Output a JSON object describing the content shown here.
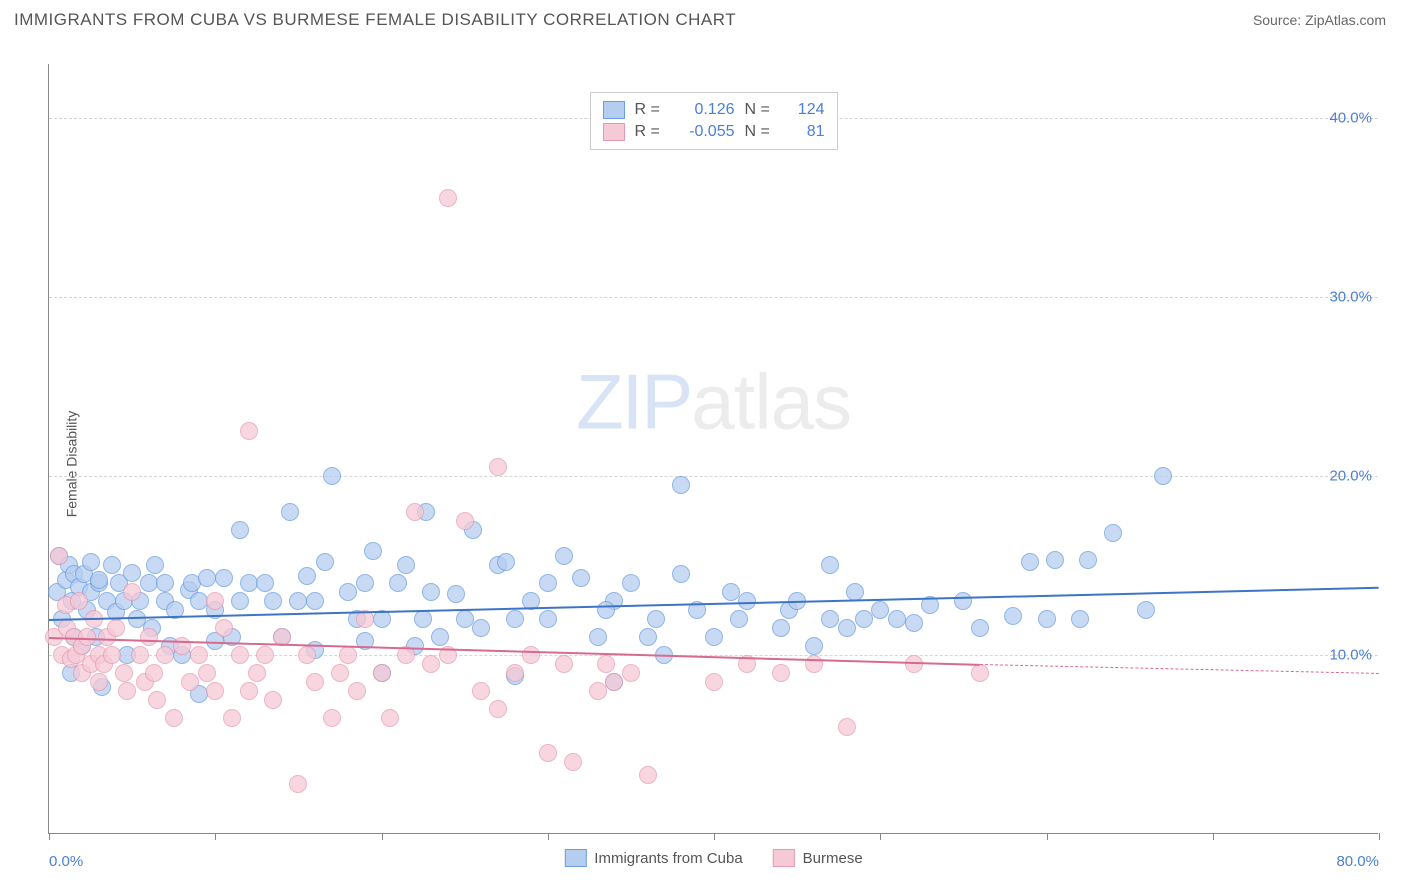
{
  "title": "IMMIGRANTS FROM CUBA VS BURMESE FEMALE DISABILITY CORRELATION CHART",
  "source": "Source: ZipAtlas.com",
  "ylabel": "Female Disability",
  "watermark": {
    "left": "ZIP",
    "right": "atlas"
  },
  "chart": {
    "type": "scatter",
    "xlim": [
      0,
      80
    ],
    "ylim": [
      0,
      43
    ],
    "xticks": [
      0,
      10,
      20,
      30,
      40,
      50,
      60,
      70,
      80
    ],
    "xtick_labels_shown": {
      "0": "0.0%",
      "80": "80.0%"
    },
    "yticks": [
      10,
      20,
      30,
      40
    ],
    "ytick_labels": [
      "10.0%",
      "20.0%",
      "30.0%",
      "40.0%"
    ],
    "background_color": "#ffffff",
    "grid_color": "#d6d6d6",
    "label_color": "#4a7fd6",
    "marker_radius": 9,
    "marker_stroke_width": 1.5,
    "marker_fill_opacity": 0.35
  },
  "series": [
    {
      "name": "Immigrants from Cuba",
      "color_stroke": "#6b9ee0",
      "color_fill": "#b5cdef",
      "R": "0.126",
      "N": "124",
      "trend": {
        "x1": 0,
        "y1": 12.0,
        "x2": 80,
        "y2": 13.8,
        "color": "#3d74c6",
        "width": 2,
        "dash_after_x": 80
      },
      "points": [
        [
          0.5,
          13.5
        ],
        [
          0.6,
          15.5
        ],
        [
          0.8,
          12.0
        ],
        [
          1.0,
          14.2
        ],
        [
          1.2,
          15.0
        ],
        [
          1.3,
          9.0
        ],
        [
          1.4,
          13.0
        ],
        [
          1.5,
          11.0
        ],
        [
          1.5,
          14.5
        ],
        [
          1.8,
          13.8
        ],
        [
          2.0,
          10.5
        ],
        [
          2.1,
          14.5
        ],
        [
          2.3,
          12.5
        ],
        [
          2.5,
          13.5
        ],
        [
          2.5,
          15.2
        ],
        [
          2.8,
          11.0
        ],
        [
          3.0,
          14.0
        ],
        [
          3.0,
          14.2
        ],
        [
          3.2,
          8.2
        ],
        [
          3.5,
          13.0
        ],
        [
          3.8,
          15.0
        ],
        [
          4.0,
          12.4
        ],
        [
          4.2,
          14.0
        ],
        [
          4.5,
          13.0
        ],
        [
          4.7,
          10.0
        ],
        [
          5.0,
          14.6
        ],
        [
          5.3,
          12.0
        ],
        [
          5.5,
          13.0
        ],
        [
          6.0,
          14.0
        ],
        [
          6.2,
          11.5
        ],
        [
          6.4,
          15.0
        ],
        [
          7.0,
          14.0
        ],
        [
          7.0,
          13.0
        ],
        [
          7.3,
          10.5
        ],
        [
          7.6,
          12.5
        ],
        [
          8.0,
          10.0
        ],
        [
          8.4,
          13.6
        ],
        [
          8.6,
          14.0
        ],
        [
          9.0,
          7.8
        ],
        [
          9.0,
          13.0
        ],
        [
          9.5,
          14.3
        ],
        [
          10.0,
          10.8
        ],
        [
          10.0,
          12.5
        ],
        [
          10.5,
          14.3
        ],
        [
          11.0,
          11.0
        ],
        [
          11.5,
          17.0
        ],
        [
          11.5,
          13.0
        ],
        [
          12.0,
          14.0
        ],
        [
          13.0,
          14.0
        ],
        [
          13.5,
          13.0
        ],
        [
          14.0,
          11.0
        ],
        [
          14.5,
          18.0
        ],
        [
          15.0,
          13.0
        ],
        [
          15.5,
          14.4
        ],
        [
          16.0,
          10.3
        ],
        [
          16.0,
          13.0
        ],
        [
          16.6,
          15.2
        ],
        [
          17.0,
          20.0
        ],
        [
          18.0,
          13.5
        ],
        [
          18.5,
          12.0
        ],
        [
          19.0,
          14.0
        ],
        [
          19.0,
          10.8
        ],
        [
          19.5,
          15.8
        ],
        [
          20.0,
          12.0
        ],
        [
          20.0,
          9.0
        ],
        [
          21.0,
          14.0
        ],
        [
          21.5,
          15.0
        ],
        [
          22.0,
          10.5
        ],
        [
          22.5,
          12.0
        ],
        [
          22.7,
          18.0
        ],
        [
          23.0,
          13.5
        ],
        [
          23.5,
          11.0
        ],
        [
          24.5,
          13.4
        ],
        [
          25.0,
          12.0
        ],
        [
          25.5,
          17.0
        ],
        [
          26.0,
          11.5
        ],
        [
          27.0,
          15.0
        ],
        [
          27.5,
          15.2
        ],
        [
          28.0,
          12.0
        ],
        [
          28.0,
          8.8
        ],
        [
          29.0,
          13.0
        ],
        [
          30.0,
          12.0
        ],
        [
          30.0,
          14.0
        ],
        [
          31.0,
          15.5
        ],
        [
          32.0,
          14.3
        ],
        [
          33.0,
          11.0
        ],
        [
          34.0,
          13.0
        ],
        [
          34.0,
          8.5
        ],
        [
          35.0,
          14.0
        ],
        [
          36.0,
          11.0
        ],
        [
          36.5,
          12.0
        ],
        [
          37.0,
          10.0
        ],
        [
          38.0,
          14.5
        ],
        [
          38.0,
          19.5
        ],
        [
          39.0,
          12.5
        ],
        [
          40.0,
          11.0
        ],
        [
          41.0,
          13.5
        ],
        [
          41.5,
          12.0
        ],
        [
          42.0,
          13.0
        ],
        [
          44.0,
          11.5
        ],
        [
          44.5,
          12.5
        ],
        [
          45.0,
          13.0
        ],
        [
          46.0,
          10.5
        ],
        [
          47.0,
          12.0
        ],
        [
          48.0,
          11.5
        ],
        [
          49.0,
          12.0
        ],
        [
          50.0,
          12.5
        ],
        [
          52.0,
          11.8
        ],
        [
          53.0,
          12.8
        ],
        [
          55.0,
          13.0
        ],
        [
          56.0,
          11.5
        ],
        [
          58.0,
          12.2
        ],
        [
          59.0,
          15.2
        ],
        [
          60.0,
          12.0
        ],
        [
          60.5,
          15.3
        ],
        [
          62.0,
          12.0
        ],
        [
          62.5,
          15.3
        ],
        [
          64.0,
          16.8
        ],
        [
          66.0,
          12.5
        ],
        [
          67.0,
          20.0
        ],
        [
          47.0,
          15.0
        ],
        [
          48.5,
          13.5
        ],
        [
          51.0,
          12.0
        ],
        [
          33.5,
          12.5
        ]
      ]
    },
    {
      "name": "Burmese",
      "color_stroke": "#e79bb2",
      "color_fill": "#f6c9d6",
      "R": "-0.055",
      "N": "81",
      "trend": {
        "x1": 0,
        "y1": 11.0,
        "x2": 56,
        "y2": 9.5,
        "color": "#d86a90",
        "width": 2,
        "dash_after_x": 56,
        "dash_to_x": 80,
        "dash_to_y": 9.0
      },
      "points": [
        [
          0.3,
          11.0
        ],
        [
          0.6,
          15.5
        ],
        [
          0.8,
          10.0
        ],
        [
          1.0,
          12.8
        ],
        [
          1.1,
          11.5
        ],
        [
          1.3,
          9.8
        ],
        [
          1.5,
          11.0
        ],
        [
          1.6,
          10.0
        ],
        [
          1.8,
          13.0
        ],
        [
          2.0,
          10.5
        ],
        [
          2.0,
          9.0
        ],
        [
          2.3,
          11.0
        ],
        [
          2.5,
          9.5
        ],
        [
          2.7,
          12.0
        ],
        [
          3.0,
          10.0
        ],
        [
          3.0,
          8.5
        ],
        [
          3.3,
          9.5
        ],
        [
          3.5,
          11.0
        ],
        [
          3.8,
          10.0
        ],
        [
          4.0,
          11.5
        ],
        [
          4.5,
          9.0
        ],
        [
          4.7,
          8.0
        ],
        [
          5.0,
          13.5
        ],
        [
          5.5,
          10.0
        ],
        [
          5.8,
          8.5
        ],
        [
          6.0,
          11.0
        ],
        [
          6.3,
          9.0
        ],
        [
          6.5,
          7.5
        ],
        [
          7.0,
          10.0
        ],
        [
          7.5,
          6.5
        ],
        [
          8.0,
          10.5
        ],
        [
          8.5,
          8.5
        ],
        [
          9.0,
          10.0
        ],
        [
          9.5,
          9.0
        ],
        [
          10.0,
          13.0
        ],
        [
          10.0,
          8.0
        ],
        [
          10.5,
          11.5
        ],
        [
          11.0,
          6.5
        ],
        [
          11.5,
          10.0
        ],
        [
          12.0,
          8.0
        ],
        [
          12.0,
          22.5
        ],
        [
          12.5,
          9.0
        ],
        [
          13.0,
          10.0
        ],
        [
          13.5,
          7.5
        ],
        [
          14.0,
          11.0
        ],
        [
          15.0,
          2.8
        ],
        [
          15.5,
          10.0
        ],
        [
          16.0,
          8.5
        ],
        [
          17.0,
          6.5
        ],
        [
          17.5,
          9.0
        ],
        [
          18.0,
          10.0
        ],
        [
          18.5,
          8.0
        ],
        [
          19.0,
          12.0
        ],
        [
          20.0,
          9.0
        ],
        [
          20.5,
          6.5
        ],
        [
          21.5,
          10.0
        ],
        [
          22.0,
          18.0
        ],
        [
          23.0,
          9.5
        ],
        [
          24.0,
          10.0
        ],
        [
          24.0,
          35.5
        ],
        [
          25.0,
          17.5
        ],
        [
          26.0,
          8.0
        ],
        [
          27.0,
          7.0
        ],
        [
          27.0,
          20.5
        ],
        [
          28.0,
          9.0
        ],
        [
          29.0,
          10.0
        ],
        [
          30.0,
          4.5
        ],
        [
          31.0,
          9.5
        ],
        [
          31.5,
          4.0
        ],
        [
          33.0,
          8.0
        ],
        [
          34.0,
          8.5
        ],
        [
          35.0,
          9.0
        ],
        [
          36.0,
          3.3
        ],
        [
          40.0,
          8.5
        ],
        [
          42.0,
          9.5
        ],
        [
          44.0,
          9.0
        ],
        [
          46.0,
          9.5
        ],
        [
          48.0,
          6.0
        ],
        [
          52.0,
          9.5
        ],
        [
          56.0,
          9.0
        ],
        [
          33.5,
          9.5
        ]
      ]
    }
  ],
  "legend_stats_labels": {
    "R": "R =",
    "N": "N ="
  },
  "bottom_legend": [
    {
      "label": "Immigrants from Cuba",
      "stroke": "#6b9ee0",
      "fill": "#b5cdef"
    },
    {
      "label": "Burmese",
      "stroke": "#e79bb2",
      "fill": "#f6c9d6"
    }
  ]
}
